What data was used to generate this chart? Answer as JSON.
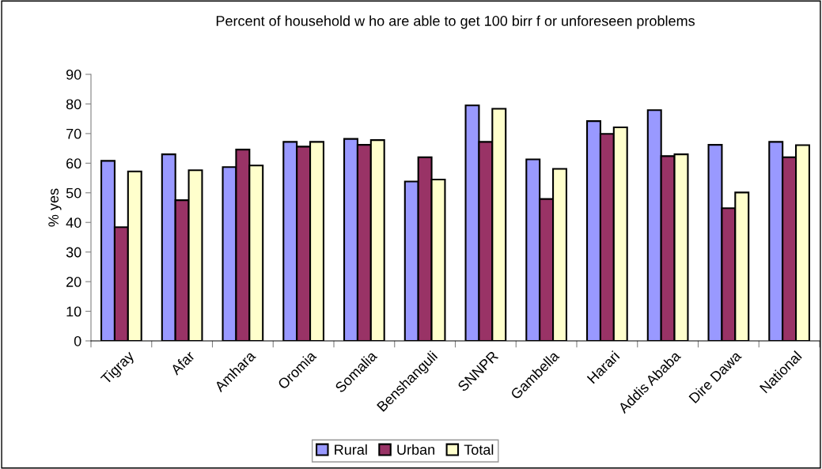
{
  "chart_data": {
    "type": "bar",
    "title": "Percent of household w ho are able to get 100 birr f or unforeseen problems",
    "ylabel": "% yes",
    "categories": [
      "Tigray",
      "Afar",
      "Amhara",
      "Oromia",
      "Somalia",
      "Benshanguli",
      "SNNPR",
      "Gambella",
      "Harari",
      "Addis Ababa",
      "Dire Dawa",
      "National"
    ],
    "series": [
      {
        "name": "Rural",
        "color": "#9999ff",
        "values": [
          60.8,
          63.0,
          58.7,
          67.2,
          68.2,
          53.8,
          79.5,
          61.3,
          74.2,
          77.9,
          66.2,
          67.2
        ]
      },
      {
        "name": "Urban",
        "color": "#993366",
        "values": [
          38.4,
          47.5,
          64.6,
          65.6,
          66.2,
          62.0,
          67.2,
          47.9,
          69.9,
          62.4,
          44.8,
          62.0
        ]
      },
      {
        "name": "Total",
        "color": "#ffffcc",
        "values": [
          57.2,
          57.6,
          59.2,
          67.2,
          67.8,
          54.5,
          78.4,
          58.1,
          72.1,
          63.0,
          50.1,
          66.1
        ]
      }
    ],
    "ylim": [
      0,
      90
    ],
    "yticks": [
      0,
      10,
      20,
      30,
      40,
      50,
      60,
      70,
      80,
      90
    ],
    "grid": false,
    "legend": "bottom"
  }
}
